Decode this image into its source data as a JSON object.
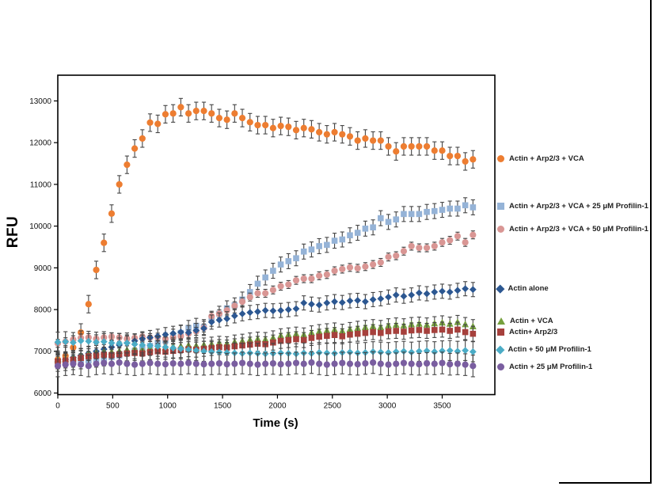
{
  "chart_data": {
    "type": "scatter",
    "title": "",
    "xlabel": "Time (s)",
    "ylabel": "RFU",
    "x_axis": {
      "min": 0,
      "max": 3980,
      "ticks": [
        0,
        500,
        1000,
        1500,
        2000,
        2500,
        3000,
        3500
      ]
    },
    "y_axis": {
      "min": 6000,
      "max": 13600,
      "ticks": [
        6000,
        7000,
        8000,
        9000,
        10000,
        11000,
        12000,
        13000
      ]
    },
    "grid": false,
    "legend_position": "right",
    "error_bar_color": "#454545",
    "x": [
      0,
      70,
      140,
      210,
      280,
      350,
      420,
      490,
      560,
      630,
      700,
      770,
      840,
      910,
      980,
      1050,
      1120,
      1190,
      1260,
      1330,
      1400,
      1470,
      1540,
      1610,
      1680,
      1750,
      1820,
      1890,
      1960,
      2030,
      2100,
      2170,
      2240,
      2310,
      2380,
      2450,
      2520,
      2590,
      2660,
      2730,
      2800,
      2870,
      2940,
      3010,
      3080,
      3150,
      3220,
      3290,
      3360,
      3430,
      3500,
      3570,
      3640,
      3710,
      3780
    ],
    "series": [
      {
        "name": "Actin + Arp2/3 + VCA",
        "marker": "circle",
        "color": "#ED7D31",
        "err": 210,
        "values": [
          6800,
          6890,
          7090,
          7450,
          8130,
          8950,
          9600,
          10300,
          11000,
          11470,
          11860,
          12100,
          12480,
          12450,
          12680,
          12700,
          12850,
          12700,
          12760,
          12760,
          12700,
          12590,
          12550,
          12700,
          12590,
          12490,
          12420,
          12420,
          12350,
          12400,
          12380,
          12300,
          12350,
          12320,
          12250,
          12200,
          12250,
          12200,
          12150,
          12050,
          12100,
          12050,
          12050,
          11910,
          11790,
          11910,
          11910,
          11910,
          11910,
          11810,
          11810,
          11680,
          11680,
          11550,
          11600
        ]
      },
      {
        "name": "Actin + Arp2/3 + VCA + 25 μM Profilin-1",
        "marker": "square",
        "color": "#95B3D7",
        "err": 180,
        "values": [
          6700,
          6720,
          6740,
          6760,
          6780,
          6800,
          6830,
          6860,
          6900,
          6950,
          7000,
          7060,
          7130,
          7200,
          7260,
          7350,
          7440,
          7560,
          7610,
          7580,
          7780,
          7900,
          8030,
          8100,
          8240,
          8420,
          8620,
          8770,
          8930,
          9080,
          9160,
          9230,
          9390,
          9440,
          9520,
          9550,
          9650,
          9680,
          9780,
          9840,
          9940,
          9970,
          10190,
          10100,
          10160,
          10290,
          10290,
          10290,
          10340,
          10360,
          10390,
          10420,
          10420,
          10500,
          10450
        ]
      },
      {
        "name": "Actin + Arp2/3 + VCA + 50 μM Profilin-1",
        "marker": "circle",
        "color": "#D99694",
        "err": 95,
        "values": [
          7190,
          7230,
          7280,
          7320,
          7330,
          7300,
          7330,
          7350,
          7330,
          7300,
          7320,
          7350,
          7330,
          7340,
          7300,
          7330,
          7360,
          7420,
          7480,
          7560,
          7840,
          7900,
          7980,
          8090,
          8190,
          8300,
          8390,
          8390,
          8470,
          8560,
          8600,
          8700,
          8740,
          8740,
          8810,
          8840,
          8930,
          8970,
          9010,
          8990,
          9030,
          9080,
          9130,
          9260,
          9290,
          9400,
          9520,
          9480,
          9480,
          9520,
          9610,
          9660,
          9760,
          9610,
          9790
        ]
      },
      {
        "name": "Actin alone",
        "marker": "diamond",
        "color": "#2C5791",
        "err": 170,
        "values": [
          6750,
          6800,
          6850,
          6900,
          6950,
          7000,
          7050,
          7100,
          7150,
          7200,
          7250,
          7300,
          7330,
          7360,
          7400,
          7430,
          7460,
          7450,
          7500,
          7550,
          7700,
          7750,
          7780,
          7850,
          7900,
          7930,
          7950,
          7980,
          7970,
          7980,
          8000,
          8020,
          8160,
          8130,
          8110,
          8160,
          8190,
          8170,
          8210,
          8220,
          8190,
          8240,
          8260,
          8300,
          8350,
          8320,
          8350,
          8400,
          8380,
          8420,
          8440,
          8420,
          8460,
          8500,
          8480
        ]
      },
      {
        "name": "Actin + VCA",
        "marker": "triangle",
        "color": "#76A03E",
        "err": 160,
        "values": [
          6800,
          6820,
          6850,
          6900,
          6950,
          6980,
          7000,
          6990,
          7010,
          7040,
          7060,
          7050,
          7080,
          7100,
          7090,
          7120,
          7130,
          7150,
          7140,
          7160,
          7180,
          7200,
          7190,
          7230,
          7250,
          7280,
          7300,
          7290,
          7330,
          7380,
          7400,
          7420,
          7400,
          7450,
          7480,
          7500,
          7520,
          7490,
          7530,
          7560,
          7580,
          7600,
          7580,
          7620,
          7640,
          7620,
          7650,
          7660,
          7640,
          7670,
          7690,
          7660,
          7700,
          7650,
          7600
        ]
      },
      {
        "name": "Actin+ Arp2/3",
        "marker": "square",
        "color": "#A6403C",
        "err": 180,
        "values": [
          6760,
          6780,
          6800,
          6840,
          6880,
          6900,
          6920,
          6910,
          6930,
          6950,
          6960,
          6950,
          6980,
          7000,
          6990,
          7010,
          7030,
          7050,
          7040,
          7060,
          7080,
          7100,
          7090,
          7120,
          7140,
          7160,
          7180,
          7170,
          7210,
          7250,
          7270,
          7290,
          7270,
          7320,
          7350,
          7370,
          7390,
          7360,
          7400,
          7420,
          7440,
          7460,
          7440,
          7480,
          7490,
          7470,
          7500,
          7510,
          7490,
          7510,
          7520,
          7490,
          7520,
          7460,
          7420
        ]
      },
      {
        "name": "Actin + 50 μM Profilin-1",
        "marker": "diamond",
        "color": "#4BACC6",
        "err": 240,
        "values": [
          7220,
          7230,
          7210,
          7250,
          7240,
          7220,
          7230,
          7200,
          7190,
          7200,
          7170,
          7150,
          7140,
          7120,
          7100,
          7080,
          7060,
          7040,
          7020,
          7000,
          6990,
          6980,
          6970,
          6960,
          6950,
          6960,
          6950,
          6940,
          6950,
          6960,
          6950,
          6940,
          6960,
          6950,
          6970,
          6960,
          6950,
          6970,
          6980,
          6960,
          6970,
          6990,
          6980,
          6970,
          6990,
          7000,
          6980,
          7000,
          7010,
          6990,
          7010,
          7020,
          7000,
          7020,
          6990
        ]
      },
      {
        "name": "Actin + 25 μM Profilin-1",
        "marker": "circle",
        "color": "#7A5EA0",
        "err": 260,
        "values": [
          6650,
          6680,
          6700,
          6680,
          6650,
          6700,
          6720,
          6700,
          6730,
          6700,
          6680,
          6700,
          6720,
          6700,
          6690,
          6710,
          6700,
          6720,
          6700,
          6690,
          6700,
          6710,
          6690,
          6700,
          6720,
          6700,
          6680,
          6700,
          6710,
          6690,
          6700,
          6720,
          6700,
          6730,
          6700,
          6680,
          6700,
          6720,
          6700,
          6690,
          6710,
          6730,
          6700,
          6680,
          6700,
          6720,
          6700,
          6690,
          6710,
          6700,
          6720,
          6690,
          6700,
          6680,
          6650
        ]
      }
    ]
  }
}
